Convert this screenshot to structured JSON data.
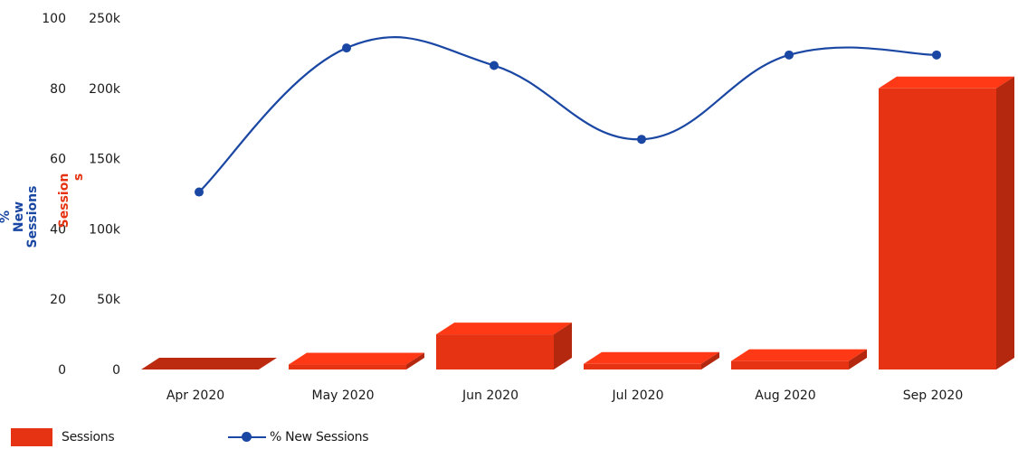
{
  "chart_data": {
    "type": "bar",
    "categories": [
      "Apr 2020",
      "May 2020",
      "Jun 2020",
      "Jul 2020",
      "Aug 2020",
      "Sep 2020"
    ],
    "series": [
      {
        "name": "Sessions",
        "kind": "bar",
        "axis": "right",
        "color": "#e53313",
        "values": [
          900,
          3500,
          25000,
          4000,
          6000,
          200000
        ]
      },
      {
        "name": "% New Sessions",
        "kind": "line",
        "axis": "left",
        "color": "#1a47a3",
        "values": [
          50.5,
          91.5,
          86.5,
          65.5,
          89.5,
          89.5
        ]
      }
    ],
    "y_left": {
      "label": "% New Sessions",
      "ylim": [
        0,
        100
      ],
      "ticks": [
        "0",
        "20",
        "40",
        "60",
        "80",
        "100"
      ],
      "color": "#1a47a3"
    },
    "y_right": {
      "label": "Sessions",
      "ylim": [
        0,
        250000
      ],
      "ticks": [
        "0",
        "50k",
        "100k",
        "150k",
        "200k",
        "250k"
      ],
      "color": "#e53313"
    },
    "grid": false,
    "legend_position": "bottom-left"
  }
}
